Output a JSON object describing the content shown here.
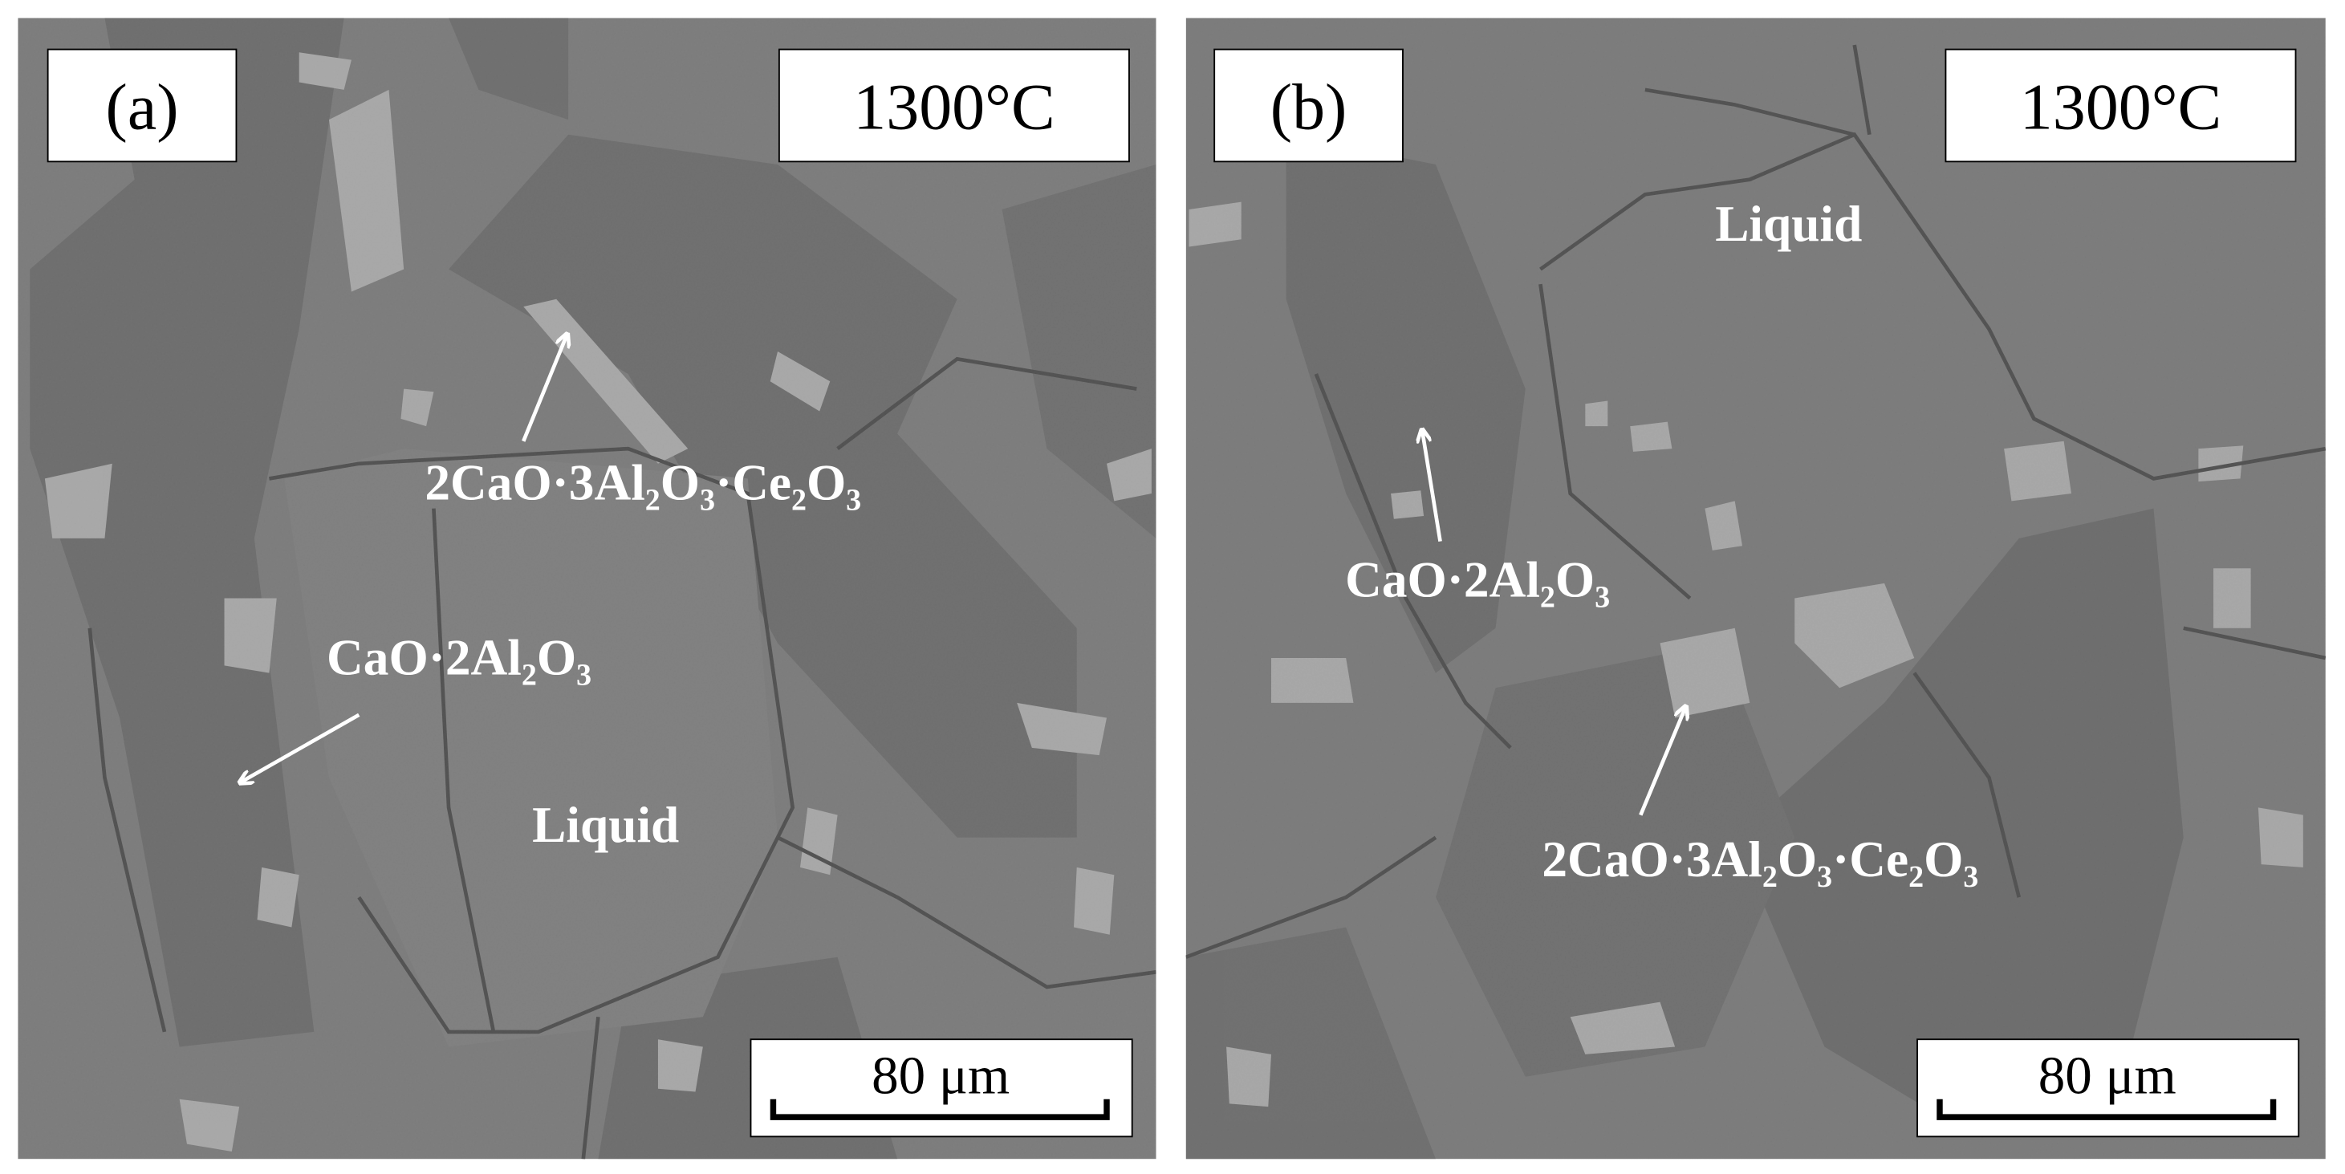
{
  "panels": [
    {
      "label": "(a)",
      "temperature": "1300°C",
      "scale_bar": "80 μm",
      "annotations": [
        "2CaO·3Al₂O₃·Ce₂O₃",
        "CaO·2Al₂O₃",
        "Liquid"
      ]
    },
    {
      "label": "(b)",
      "temperature": "1300°C",
      "scale_bar": "80 μm",
      "annotations": [
        "Liquid",
        "CaO·2Al₂O₃",
        "2CaO·3Al₂O₃·Ce₂O₃"
      ]
    }
  ]
}
